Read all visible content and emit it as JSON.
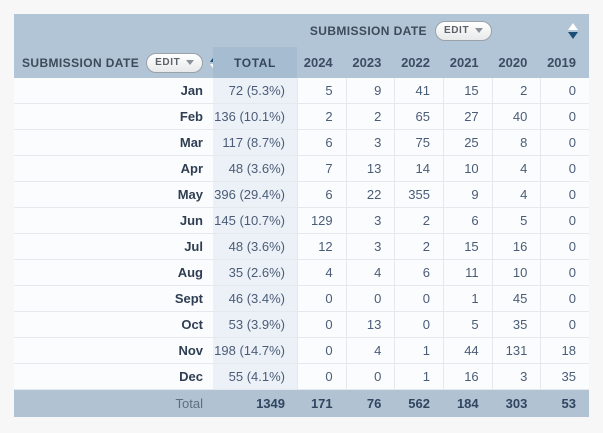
{
  "top_header": {
    "label": "SUBMISSION DATE",
    "edit_label": "EDIT",
    "sort_direction": "desc"
  },
  "left_header": {
    "label": "SUBMISSION DATE",
    "edit_label": "EDIT",
    "sort_direction": "asc"
  },
  "columns": {
    "total_label": "TOTAL",
    "years": [
      "2024",
      "2023",
      "2022",
      "2021",
      "2020",
      "2019"
    ]
  },
  "rows": [
    {
      "month": "Jan",
      "total": "72 (5.3%)",
      "values": [
        "5",
        "9",
        "41",
        "15",
        "2",
        "0"
      ]
    },
    {
      "month": "Feb",
      "total": "136 (10.1%)",
      "values": [
        "2",
        "2",
        "65",
        "27",
        "40",
        "0"
      ]
    },
    {
      "month": "Mar",
      "total": "117 (8.7%)",
      "values": [
        "6",
        "3",
        "75",
        "25",
        "8",
        "0"
      ]
    },
    {
      "month": "Apr",
      "total": "48 (3.6%)",
      "values": [
        "7",
        "13",
        "14",
        "10",
        "4",
        "0"
      ]
    },
    {
      "month": "May",
      "total": "396 (29.4%)",
      "values": [
        "6",
        "22",
        "355",
        "9",
        "4",
        "0"
      ]
    },
    {
      "month": "Jun",
      "total": "145 (10.7%)",
      "values": [
        "129",
        "3",
        "2",
        "6",
        "5",
        "0"
      ]
    },
    {
      "month": "Jul",
      "total": "48 (3.6%)",
      "values": [
        "12",
        "3",
        "2",
        "15",
        "16",
        "0"
      ]
    },
    {
      "month": "Aug",
      "total": "35 (2.6%)",
      "values": [
        "4",
        "4",
        "6",
        "11",
        "10",
        "0"
      ]
    },
    {
      "month": "Sept",
      "total": "46 (3.4%)",
      "values": [
        "0",
        "0",
        "0",
        "1",
        "45",
        "0"
      ]
    },
    {
      "month": "Oct",
      "total": "53 (3.9%)",
      "values": [
        "0",
        "13",
        "0",
        "5",
        "35",
        "0"
      ]
    },
    {
      "month": "Nov",
      "total": "198 (14.7%)",
      "values": [
        "0",
        "4",
        "1",
        "44",
        "131",
        "18"
      ]
    },
    {
      "month": "Dec",
      "total": "55 (4.1%)",
      "values": [
        "0",
        "0",
        "1",
        "16",
        "3",
        "35"
      ]
    }
  ],
  "footer": {
    "label": "Total",
    "total": "1349",
    "values": [
      "171",
      "76",
      "562",
      "184",
      "303",
      "53"
    ]
  },
  "colors": {
    "header_bg": "#b2c5d6",
    "total_header_bg": "#a6bdd1",
    "total_column_bg": "#ecf1f7",
    "footer_bg": "#b1c3d3",
    "sort_active": "#1d4e77",
    "sort_inactive": "#ffffff"
  }
}
